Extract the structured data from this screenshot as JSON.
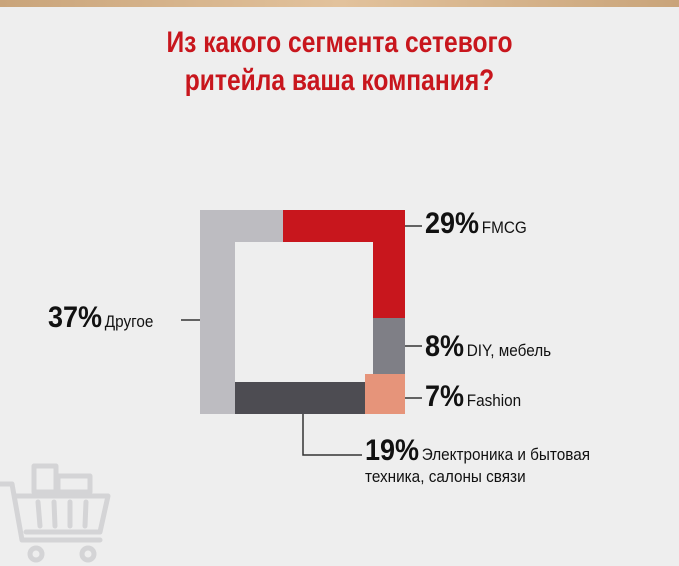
{
  "header": {
    "title_line1": "Из какого сегмента сетевого",
    "title_line2": "ритейла ваша компания?"
  },
  "colors": {
    "fmcg": "#c8161d",
    "diy": "#7f7f86",
    "fashion": "#e6947a",
    "electronics": "#4d4c52",
    "other": "#bdbcc1",
    "leader": "#333333",
    "title": "#c8161d"
  },
  "icons": {
    "decoration": "shopping-cart-icon"
  },
  "chart_data": {
    "type": "pie",
    "title": "Из какого сегмента сетевого ритейла ваша компания?",
    "unit": "%",
    "legend": "none",
    "slices": [
      {
        "key": "fmcg",
        "percent_label": "29%",
        "label": "FMCG",
        "value": 29
      },
      {
        "key": "diy",
        "percent_label": "8%",
        "label": "DIY, мебель",
        "value": 8
      },
      {
        "key": "fashion",
        "percent_label": "7%",
        "label": "Fashion",
        "value": 7
      },
      {
        "key": "electronics",
        "percent_label": "19%",
        "label": "Электроника и бытовая техника, салоны связи",
        "value": 19
      },
      {
        "key": "other",
        "percent_label": "37%",
        "label": "Другое",
        "value": 37
      }
    ]
  }
}
